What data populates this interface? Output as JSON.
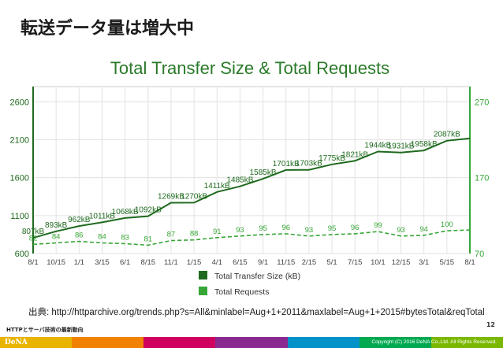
{
  "slide": {
    "title": "転送データ量は増大中",
    "source": "出典: http://httparchive.org/trends.php?s=All&minlabel=Aug+1+2011&maxlabel=Aug+1+2015#bytesTotal&reqTotal",
    "footer_left": "HTTPとサーバ技術の最新動向",
    "page_number": "12",
    "logo": "DeNA",
    "copyright": "Copyright (C) 2016 DeNA Co.,Ltd. All Rights Reserved.",
    "footer_colors": [
      "#e8b400",
      "#f08200",
      "#d0005e",
      "#8a2a90",
      "#0092c8",
      "#00a94f",
      "#7ab800"
    ]
  },
  "chart_data": {
    "type": "line",
    "title": "Total Transfer Size & Total Requests",
    "x_ticks": [
      "8/1",
      "10/15",
      "1/1",
      "3/15",
      "6/1",
      "8/15",
      "11/1",
      "1/15",
      "4/1",
      "6/15",
      "9/1",
      "11/15",
      "2/15",
      "5/1",
      "7/15",
      "10/1",
      "12/15",
      "3/1",
      "5/15",
      "8/1"
    ],
    "y_left": {
      "ticks": [
        600,
        1100,
        1600,
        2100,
        2600
      ],
      "range": [
        600,
        2800
      ]
    },
    "y_right": {
      "ticks": [
        70,
        170,
        270
      ],
      "range": [
        70,
        290
      ]
    },
    "grid": true,
    "legend_position": "bottom",
    "series": [
      {
        "name": "Total Transfer Size (kB)",
        "axis": "left",
        "color": "#1e6a1e",
        "labels": [
          "807kB",
          "893kB",
          "962kB",
          "1011kB",
          "1068kB",
          "1092kB",
          "1269kB",
          "1270kB",
          "1411kB",
          "1485kB",
          "1585kB",
          "1701kB",
          "1703kB",
          "1775kB",
          "1821kB",
          "1944kB",
          "1931kB",
          "1958kB",
          "2087kB"
        ],
        "label_ticks": [
          0,
          1,
          2,
          3,
          4,
          5,
          6,
          7,
          8,
          9,
          10,
          11,
          12,
          13,
          14,
          15,
          16,
          17,
          18
        ]
      },
      {
        "name": "Total Requests",
        "axis": "right",
        "color": "#36a636",
        "labels": [
          "82",
          "84",
          "86",
          "84",
          "83",
          "81",
          "87",
          "88",
          "91",
          "93",
          "95",
          "96",
          "93",
          "95",
          "96",
          "99",
          "93",
          "94",
          "100"
        ],
        "label_ticks": [
          0,
          1,
          2,
          3,
          4,
          5,
          6,
          7,
          8,
          9,
          10,
          11,
          12,
          13,
          14,
          15,
          16,
          17,
          18
        ]
      }
    ]
  }
}
